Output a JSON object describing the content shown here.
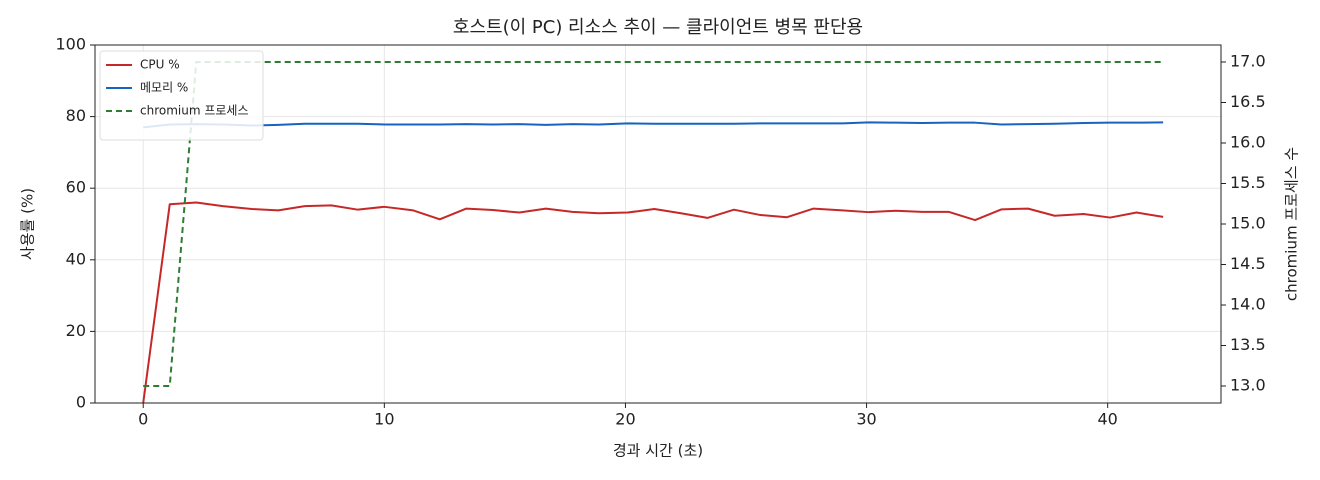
{
  "chart_data": {
    "type": "line",
    "title": "호스트(이 PC) 리소스 추이 — 클라이언트 병목 판단용",
    "x_label": "경과 시간 (초)",
    "y_label": "사용률 (%)",
    "y2_label": "chromium 프로세스 수",
    "x": [
      0,
      1.1,
      2.2,
      3.3,
      4.5,
      5.6,
      6.7,
      7.8,
      8.9,
      10.0,
      11.2,
      12.3,
      13.4,
      14.5,
      15.6,
      16.7,
      17.8,
      18.9,
      20.1,
      21.2,
      22.3,
      23.4,
      24.5,
      25.6,
      26.7,
      27.8,
      29.0,
      30.1,
      31.2,
      32.3,
      33.4,
      34.5,
      35.6,
      36.7,
      37.8,
      39.0,
      40.1,
      41.2,
      42.3
    ],
    "series": [
      {
        "name": "CPU %",
        "color": "#c62828",
        "linestyle": "solid",
        "values": [
          0,
          55.5,
          56,
          55,
          54.2,
          53.8,
          55,
          55.2,
          54,
          54.8,
          53.8,
          51.3,
          54.3,
          53.9,
          53.2,
          54.3,
          53.4,
          53,
          53.2,
          54.2,
          53,
          51.7,
          54,
          52.5,
          51.9,
          54.3,
          53.8,
          53.3,
          53.7,
          53.4,
          53.4,
          51.1,
          54.1,
          54.3,
          52.3,
          52.8,
          51.8,
          53.2,
          52
        ]
      },
      {
        "name": "메모리 %",
        "color": "#1565c0",
        "linestyle": "solid",
        "values": [
          77,
          77.8,
          77.9,
          77.8,
          77.5,
          77.7,
          78,
          78,
          78,
          77.8,
          77.8,
          77.8,
          77.9,
          77.8,
          77.9,
          77.7,
          77.9,
          77.8,
          78.1,
          78,
          78,
          78,
          78,
          78.1,
          78.1,
          78.1,
          78.1,
          78.4,
          78.3,
          78.2,
          78.3,
          78.3,
          77.8,
          77.9,
          78,
          78.2,
          78.3,
          78.3,
          78.4
        ]
      },
      {
        "name": "chromium 프로세스",
        "color": "#2e7d32",
        "linestyle": "dashed",
        "axis": "y2",
        "values": [
          13,
          13,
          17,
          17,
          17,
          17,
          17,
          17,
          17,
          17,
          17,
          17,
          17,
          17,
          17,
          17,
          17,
          17,
          17,
          17,
          17,
          17,
          17,
          17,
          17,
          17,
          17,
          17,
          17,
          17,
          17,
          17,
          17,
          17,
          17,
          17,
          17,
          17,
          17
        ]
      }
    ],
    "xlim": [
      -2,
      44.7
    ],
    "xticks": [
      0,
      10,
      20,
      30,
      40
    ],
    "ylim": [
      0,
      100
    ],
    "yticks": [
      0,
      20,
      40,
      60,
      80,
      100
    ],
    "y2lim": [
      12.79,
      17.21
    ],
    "y2ticks": [
      {
        "value": 13,
        "label": "13.0"
      },
      {
        "value": 13.5,
        "label": "13.5"
      },
      {
        "value": 14,
        "label": "14.0"
      },
      {
        "value": 14.5,
        "label": "14.5"
      },
      {
        "value": 15,
        "label": "15.0"
      },
      {
        "value": 15.5,
        "label": "15.5"
      },
      {
        "value": 16,
        "label": "16.0"
      },
      {
        "value": 16.5,
        "label": "16.5"
      },
      {
        "value": 17,
        "label": "17.0"
      }
    ],
    "grid": true,
    "legend": "upper left"
  }
}
